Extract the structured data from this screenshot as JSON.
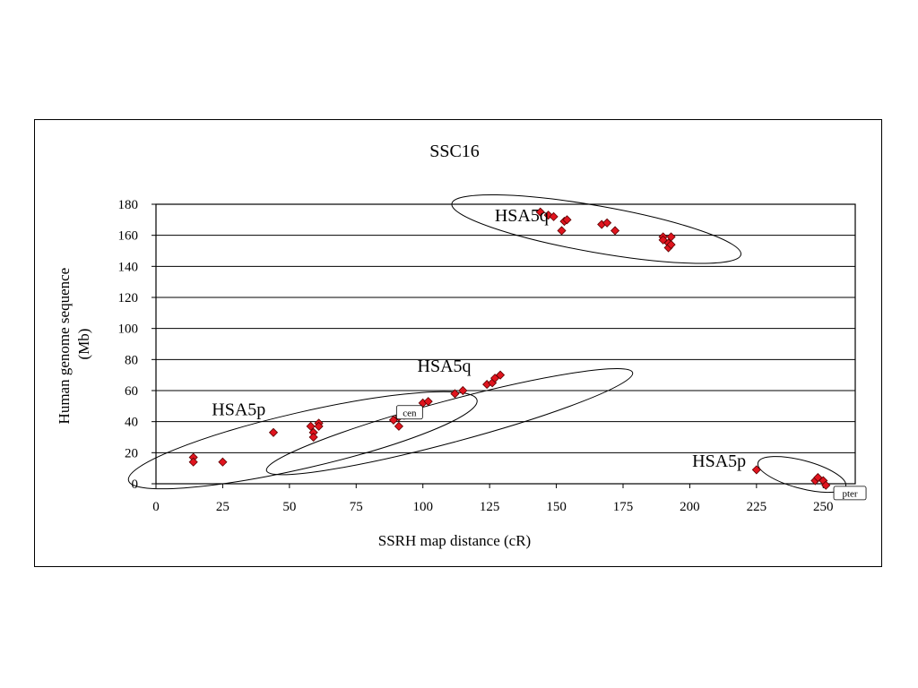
{
  "chart_data": {
    "type": "scatter",
    "title": "SSC16",
    "xlabel": "SSRH map distance (cR)",
    "ylabel_lines": [
      "Human genome sequence",
      "(Mb)"
    ],
    "xlim": [
      0,
      262
    ],
    "ylim": [
      0,
      180
    ],
    "xticks": [
      0,
      25,
      50,
      75,
      100,
      125,
      150,
      175,
      200,
      225,
      250
    ],
    "yticks": [
      0,
      20,
      40,
      60,
      80,
      100,
      120,
      140,
      160,
      180
    ],
    "grid": "horizontal",
    "marker": "diamond",
    "colors": {
      "marker_fill": "#e0141e",
      "marker_stroke": "#5a0000",
      "grid": "#000000"
    },
    "points": [
      {
        "x": 14,
        "y": 17
      },
      {
        "x": 14,
        "y": 14
      },
      {
        "x": 25,
        "y": 14
      },
      {
        "x": 44,
        "y": 33
      },
      {
        "x": 58,
        "y": 37
      },
      {
        "x": 59,
        "y": 33
      },
      {
        "x": 59,
        "y": 30
      },
      {
        "x": 61,
        "y": 39
      },
      {
        "x": 61,
        "y": 37
      },
      {
        "x": 89,
        "y": 41
      },
      {
        "x": 91,
        "y": 43
      },
      {
        "x": 91,
        "y": 37
      },
      {
        "x": 93,
        "y": 44
      },
      {
        "x": 100,
        "y": 52
      },
      {
        "x": 102,
        "y": 53
      },
      {
        "x": 112,
        "y": 58
      },
      {
        "x": 115,
        "y": 60
      },
      {
        "x": 124,
        "y": 64
      },
      {
        "x": 126,
        "y": 65
      },
      {
        "x": 127,
        "y": 68
      },
      {
        "x": 129,
        "y": 70
      },
      {
        "x": 144,
        "y": 175
      },
      {
        "x": 147,
        "y": 173
      },
      {
        "x": 149,
        "y": 172
      },
      {
        "x": 152,
        "y": 163
      },
      {
        "x": 153,
        "y": 169
      },
      {
        "x": 154,
        "y": 170
      },
      {
        "x": 167,
        "y": 167
      },
      {
        "x": 169,
        "y": 168
      },
      {
        "x": 172,
        "y": 163
      },
      {
        "x": 190,
        "y": 159
      },
      {
        "x": 190,
        "y": 157
      },
      {
        "x": 192,
        "y": 155
      },
      {
        "x": 192,
        "y": 152
      },
      {
        "x": 193,
        "y": 154
      },
      {
        "x": 193,
        "y": 159
      },
      {
        "x": 225,
        "y": 9
      },
      {
        "x": 247,
        "y": 2
      },
      {
        "x": 248,
        "y": 4
      },
      {
        "x": 250,
        "y": 2
      },
      {
        "x": 251,
        "y": -1
      }
    ],
    "groups": [
      {
        "label": "HSA5p",
        "ellipse": {
          "cx": 55,
          "cy": 28,
          "rx": 67,
          "ry": 6,
          "angle_deg": -13
        }
      },
      {
        "label": "HSA5q",
        "ellipse": {
          "cx": 110,
          "cy": 40,
          "rx": 71,
          "ry": 4.5,
          "angle_deg": -15
        }
      },
      {
        "label": "HSA5q",
        "ellipse": {
          "cx": 165,
          "cy": 164,
          "rx": 55,
          "ry": 5,
          "angle_deg": 10
        }
      },
      {
        "label": "HSA5p",
        "ellipse": {
          "cx": 242,
          "cy": 6,
          "rx": 17,
          "ry": 3,
          "angle_deg": 15
        }
      }
    ],
    "boxes": [
      {
        "label": "cen",
        "x": 95,
        "y": 46
      },
      {
        "label": "pter",
        "x": 260,
        "y": -6
      }
    ],
    "annotations": [
      {
        "text": "HSA5p",
        "x": 31,
        "y": 44
      },
      {
        "text": "HSA5q",
        "x": 108,
        "y": 72
      },
      {
        "text": "HSA5q",
        "x": 137,
        "y": 169
      },
      {
        "text": "HSA5p",
        "x": 211,
        "y": 11
      }
    ]
  }
}
